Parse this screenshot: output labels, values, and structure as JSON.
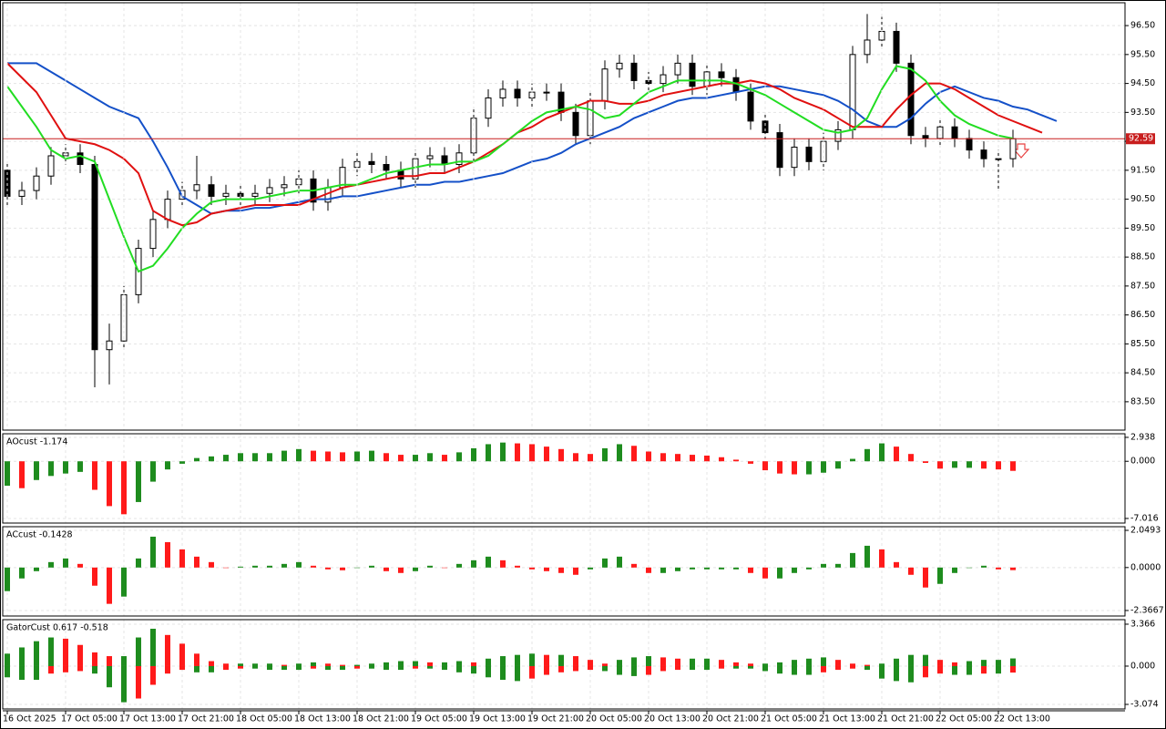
{
  "chart_data": [
    {
      "type": "candlestick",
      "open": [
        91.5,
        90.6,
        90.8,
        91.3,
        92.0,
        92.1,
        91.7,
        85.3,
        85.6,
        87.2,
        88.8,
        89.8,
        90.5,
        90.8,
        91.0,
        90.6,
        90.7,
        90.6,
        90.7,
        90.9,
        91.0,
        91.2,
        90.4,
        90.9,
        91.6,
        91.8,
        91.7,
        91.5,
        91.2,
        91.9,
        92.0,
        91.7,
        92.1,
        93.3,
        94.0,
        94.3,
        94.0,
        94.2,
        94.2,
        93.5,
        92.7,
        93.9,
        95.0,
        95.2,
        94.6,
        94.5,
        94.8,
        95.2,
        94.4,
        94.9,
        94.7,
        94.2,
        93.2,
        92.8,
        91.6,
        92.3,
        91.8,
        92.5,
        92.9,
        95.5,
        96.0,
        96.3,
        95.2,
        92.7,
        92.6,
        93.0,
        92.6,
        92.2,
        91.9,
        91.9
      ],
      "high": [
        91.8,
        91.1,
        91.6,
        92.3,
        92.4,
        92.4,
        92.0,
        86.2,
        87.5,
        89.1,
        90.1,
        90.8,
        91.1,
        92.0,
        91.3,
        91.0,
        91.0,
        91.0,
        91.2,
        91.3,
        91.5,
        91.5,
        91.2,
        91.9,
        92.1,
        92.1,
        92.0,
        91.8,
        92.2,
        92.3,
        92.3,
        92.4,
        93.6,
        94.3,
        94.6,
        94.6,
        94.5,
        94.5,
        94.5,
        93.8,
        94.2,
        95.3,
        95.5,
        95.5,
        94.9,
        95.1,
        95.5,
        95.5,
        95.2,
        95.2,
        95.0,
        94.5,
        93.5,
        93.1,
        92.6,
        92.6,
        92.8,
        93.2,
        95.8,
        96.9,
        96.8,
        96.6,
        95.5,
        93.0,
        93.3,
        93.3,
        92.9,
        92.5,
        92.2,
        92.9
      ],
      "low": [
        90.3,
        90.3,
        90.5,
        91.0,
        91.7,
        91.4,
        84.0,
        84.1,
        85.3,
        86.9,
        88.5,
        89.5,
        90.2,
        90.5,
        90.3,
        90.3,
        90.3,
        90.3,
        90.4,
        90.6,
        90.7,
        90.1,
        90.1,
        90.6,
        91.3,
        91.4,
        91.2,
        90.9,
        90.9,
        91.6,
        91.4,
        91.4,
        91.8,
        93.0,
        93.7,
        93.7,
        93.7,
        93.9,
        93.2,
        92.4,
        92.4,
        93.6,
        94.7,
        94.3,
        94.2,
        94.2,
        94.5,
        94.1,
        94.1,
        94.4,
        93.9,
        92.9,
        92.5,
        91.3,
        91.3,
        91.5,
        91.5,
        92.2,
        92.6,
        95.2,
        95.7,
        94.9,
        92.4,
        92.3,
        92.3,
        92.3,
        91.9,
        91.6,
        90.8,
        91.6
      ],
      "close": [
        90.6,
        90.8,
        91.3,
        92.0,
        92.1,
        91.7,
        85.3,
        85.6,
        87.2,
        88.8,
        89.8,
        90.5,
        90.8,
        91.0,
        90.6,
        90.7,
        90.6,
        90.7,
        90.9,
        91.0,
        91.2,
        90.4,
        90.9,
        91.6,
        91.8,
        91.7,
        91.5,
        91.2,
        91.9,
        92.0,
        91.7,
        92.1,
        93.3,
        94.0,
        94.3,
        94.0,
        94.2,
        94.2,
        93.5,
        92.7,
        93.9,
        95.0,
        95.2,
        94.6,
        94.5,
        94.8,
        95.2,
        94.4,
        94.9,
        94.7,
        94.2,
        93.2,
        92.8,
        91.6,
        92.3,
        91.8,
        92.5,
        92.9,
        95.5,
        96.0,
        96.3,
        95.2,
        92.7,
        92.6,
        93.0,
        92.6,
        92.2,
        91.9,
        91.9,
        92.59
      ],
      "series": [
        {
          "color": "#1450c8",
          "values": [
            95.2,
            95.2,
            95.2,
            94.9,
            94.6,
            94.3,
            94.0,
            93.7,
            93.5,
            93.3,
            92.5,
            91.6,
            90.6,
            90.3,
            90.0,
            90.1,
            90.1,
            90.2,
            90.2,
            90.3,
            90.4,
            90.5,
            90.5,
            90.6,
            90.6,
            90.7,
            90.8,
            90.9,
            91.0,
            91.0,
            91.1,
            91.1,
            91.2,
            91.3,
            91.4,
            91.6,
            91.8,
            91.9,
            92.1,
            92.4,
            92.6,
            92.8,
            93.0,
            93.3,
            93.5,
            93.7,
            93.9,
            94.0,
            94.0,
            94.1,
            94.2,
            94.3,
            94.4,
            94.4,
            94.3,
            94.2,
            94.1,
            93.9,
            93.6,
            93.2,
            93.0,
            93.0,
            93.3,
            93.8,
            94.2,
            94.4,
            94.2,
            94.0,
            93.9,
            93.7,
            93.6,
            93.4,
            93.2
          ]
        },
        {
          "color": "#e01010",
          "values": [
            95.2,
            94.7,
            94.2,
            93.4,
            92.6,
            92.5,
            92.4,
            92.2,
            91.9,
            91.4,
            90.1,
            89.8,
            89.6,
            89.7,
            90.0,
            90.1,
            90.2,
            90.3,
            90.3,
            90.3,
            90.3,
            90.5,
            90.7,
            90.9,
            91.0,
            91.1,
            91.2,
            91.3,
            91.3,
            91.4,
            91.4,
            91.6,
            91.8,
            92.1,
            92.4,
            92.8,
            93.0,
            93.3,
            93.5,
            93.7,
            93.9,
            93.9,
            93.8,
            93.8,
            93.9,
            94.1,
            94.2,
            94.3,
            94.4,
            94.5,
            94.5,
            94.6,
            94.5,
            94.3,
            94.0,
            93.8,
            93.6,
            93.3,
            93.0,
            93.0,
            93.0,
            93.6,
            94.1,
            94.5,
            94.5,
            94.3,
            94.0,
            93.7,
            93.4,
            93.2,
            93.0,
            92.8
          ]
        },
        {
          "color": "#22dd22",
          "values": [
            94.4,
            93.7,
            93.0,
            92.2,
            91.9,
            92.0,
            91.8,
            90.5,
            89.2,
            88.0,
            88.2,
            88.8,
            89.5,
            90.0,
            90.4,
            90.5,
            90.5,
            90.5,
            90.6,
            90.7,
            90.8,
            90.8,
            90.9,
            91.0,
            91.0,
            91.2,
            91.4,
            91.5,
            91.6,
            91.7,
            91.7,
            91.8,
            91.8,
            92.0,
            92.4,
            92.8,
            93.2,
            93.5,
            93.6,
            93.7,
            93.6,
            93.3,
            93.4,
            93.8,
            94.2,
            94.4,
            94.6,
            94.6,
            94.6,
            94.6,
            94.5,
            94.3,
            94.1,
            93.8,
            93.5,
            93.2,
            92.9,
            92.8,
            92.9,
            93.3,
            94.3,
            95.1,
            95.0,
            94.6,
            93.9,
            93.4,
            93.1,
            92.9,
            92.7,
            92.6
          ]
        }
      ],
      "price_line": 92.59,
      "price_line_color": "#c81e1e",
      "ylim": [
        82.52,
        97.29
      ],
      "yticks": [
        {
          "value": 83.5,
          "label": "83.50"
        },
        {
          "value": 84.5,
          "label": "84.50"
        },
        {
          "value": 85.5,
          "label": "85.50"
        },
        {
          "value": 86.5,
          "label": "86.50"
        },
        {
          "value": 87.5,
          "label": "87.50"
        },
        {
          "value": 88.5,
          "label": "88.50"
        },
        {
          "value": 89.5,
          "label": "89.50"
        },
        {
          "value": 90.5,
          "label": "90.50"
        },
        {
          "value": 91.5,
          "label": "91.50"
        },
        {
          "value": 92.5,
          "label": "92.50"
        },
        {
          "value": 93.5,
          "label": "93.50"
        },
        {
          "value": 94.5,
          "label": "94.50"
        },
        {
          "value": 95.5,
          "label": "95.50"
        },
        {
          "value": 96.5,
          "label": "96.50"
        }
      ],
      "xticks": [
        {
          "value": 0,
          "label": "16 Oct 2025"
        },
        {
          "value": 4,
          "label": "17 Oct 05:00"
        },
        {
          "value": 8,
          "label": "17 Oct 13:00"
        },
        {
          "value": 12,
          "label": "17 Oct 21:00"
        },
        {
          "value": 16,
          "label": "18 Oct 05:00"
        },
        {
          "value": 20,
          "label": "18 Oct 13:00"
        },
        {
          "value": 24,
          "label": "18 Oct 21:00"
        },
        {
          "value": 28,
          "label": "19 Oct 05:00"
        },
        {
          "value": 32,
          "label": "19 Oct 13:00"
        },
        {
          "value": 36,
          "label": "19 Oct 21:00"
        },
        {
          "value": 40,
          "label": "20 Oct 05:00"
        },
        {
          "value": 44,
          "label": "20 Oct 13:00"
        },
        {
          "value": 48,
          "label": "20 Oct 21:00"
        },
        {
          "value": 52,
          "label": "21 Oct 05:00"
        },
        {
          "value": 56,
          "label": "21 Oct 13:00"
        },
        {
          "value": 60,
          "label": "21 Oct 21:00"
        },
        {
          "value": 64,
          "label": "22 Oct 05:00"
        },
        {
          "value": 68,
          "label": "22 Oct 13:00"
        }
      ],
      "grid": true
    },
    {
      "type": "bar",
      "title": "AOcust -1.174",
      "up_color": "#1e8c1e",
      "down_color": "#ff1a1a",
      "values": [
        -3.0,
        -3.3,
        -2.3,
        -1.8,
        -1.5,
        -1.3,
        -3.5,
        -5.5,
        -6.5,
        -5.0,
        -2.5,
        -1.0,
        -0.3,
        0.4,
        0.6,
        0.8,
        1.0,
        1.0,
        1.0,
        1.3,
        1.5,
        1.3,
        1.2,
        1.1,
        1.2,
        1.3,
        1.0,
        0.8,
        0.8,
        1.0,
        0.8,
        1.1,
        1.6,
        2.1,
        2.3,
        2.2,
        2.1,
        1.8,
        1.5,
        1.0,
        0.9,
        1.6,
        2.1,
        1.9,
        1.2,
        1.0,
        0.9,
        0.8,
        0.7,
        0.5,
        0.2,
        -0.3,
        -1.1,
        -1.5,
        -1.6,
        -1.6,
        -1.4,
        -0.9,
        0.3,
        1.5,
        2.2,
        1.8,
        0.9,
        -0.2,
        -0.9,
        -0.8,
        -0.8,
        -0.9,
        -1.0,
        -1.174
      ],
      "ylim": [
        -7.58,
        3.38
      ],
      "yticks": [
        2.938,
        {
          "value": 0,
          "label": "0.000"
        },
        -7.016
      ],
      "grid": true
    },
    {
      "type": "bar",
      "title": "ACcust -0.1428",
      "up_color": "#1e8c1e",
      "down_color": "#ff1a1a",
      "values": [
        -1.3,
        -0.6,
        -0.2,
        0.3,
        0.5,
        0.2,
        -1.0,
        -2.0,
        -1.6,
        0.5,
        1.7,
        1.4,
        1.0,
        0.6,
        0.3,
        0.0,
        0.05,
        0.1,
        0.1,
        0.2,
        0.3,
        0.1,
        -0.1,
        -0.15,
        0.0,
        0.1,
        -0.2,
        -0.3,
        -0.2,
        0.1,
        0.0,
        0.2,
        0.4,
        0.6,
        0.4,
        0.1,
        -0.1,
        -0.2,
        -0.3,
        -0.4,
        -0.1,
        0.5,
        0.6,
        0.2,
        -0.3,
        -0.3,
        -0.2,
        -0.1,
        -0.1,
        -0.1,
        -0.1,
        -0.3,
        -0.6,
        -0.6,
        -0.3,
        -0.1,
        0.2,
        0.2,
        0.8,
        1.2,
        1.0,
        0.3,
        -0.4,
        -1.1,
        -0.9,
        -0.3,
        0.0,
        0.1,
        -0.1,
        -0.1428
      ],
      "ylim": [
        -2.67,
        2.25
      ],
      "yticks": [
        2.0493,
        {
          "value": 0,
          "label": "0.0000"
        },
        -2.3667
      ],
      "grid": true
    },
    {
      "type": "gator",
      "title": "GatorCust 0.617 -0.518",
      "up_color": "#1e8c1e",
      "down_color": "#ff1a1a",
      "series": [
        {
          "values": [
            1.0,
            1.5,
            2.0,
            2.3,
            2.2,
            1.7,
            1.1,
            0.8,
            0.8,
            2.3,
            3.0,
            2.5,
            1.8,
            1.0,
            0.4,
            0.2,
            0.2,
            0.2,
            0.2,
            0.1,
            0.2,
            0.3,
            0.2,
            0.1,
            0.1,
            0.2,
            0.3,
            0.4,
            0.4,
            0.3,
            0.3,
            0.4,
            0.3,
            0.6,
            0.8,
            0.9,
            1.0,
            0.9,
            0.9,
            0.8,
            0.5,
            0.2,
            0.5,
            0.7,
            0.8,
            0.7,
            0.6,
            0.6,
            0.6,
            0.5,
            0.3,
            0.2,
            0.2,
            0.3,
            0.5,
            0.6,
            0.7,
            0.5,
            0.2,
            0.1,
            0.2,
            0.6,
            0.9,
            0.9,
            0.5,
            0.3,
            0.4,
            0.5,
            0.5,
            0.617
          ]
        },
        {
          "values": [
            -0.9,
            -1.1,
            -1.1,
            -0.6,
            -0.5,
            -0.4,
            -0.6,
            -1.7,
            -2.9,
            -2.6,
            -1.5,
            -0.6,
            -0.3,
            -0.5,
            -0.5,
            -0.3,
            -0.2,
            -0.2,
            -0.3,
            -0.3,
            -0.3,
            -0.2,
            -0.3,
            -0.3,
            -0.2,
            -0.2,
            -0.3,
            -0.3,
            -0.2,
            -0.2,
            -0.3,
            -0.5,
            -0.6,
            -0.9,
            -1.1,
            -1.2,
            -1.0,
            -0.7,
            -0.5,
            -0.4,
            -0.3,
            -0.4,
            -0.7,
            -0.8,
            -0.7,
            -0.4,
            -0.3,
            -0.3,
            -0.3,
            -0.2,
            -0.2,
            -0.2,
            -0.4,
            -0.6,
            -0.7,
            -0.7,
            -0.5,
            -0.3,
            -0.2,
            -0.3,
            -1.0,
            -1.2,
            -1.3,
            -0.9,
            -0.6,
            -0.7,
            -0.7,
            -0.6,
            -0.6,
            -0.518
          ]
        }
      ],
      "ylim": [
        -3.44,
        3.73
      ],
      "yticks": [
        3.366,
        {
          "value": 0,
          "label": "0.000"
        },
        -3.074
      ],
      "grid": true
    }
  ]
}
